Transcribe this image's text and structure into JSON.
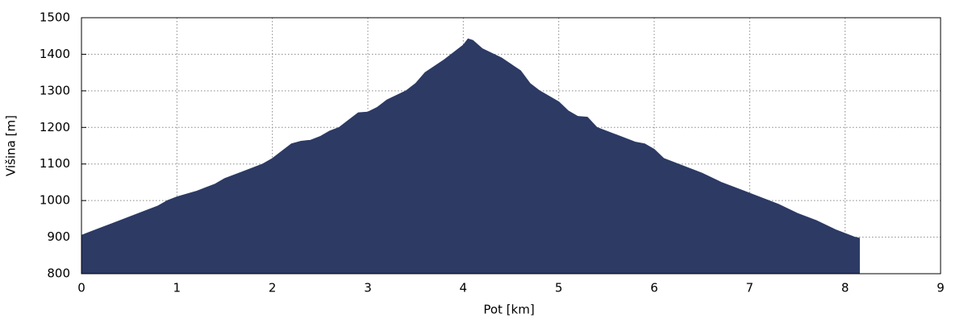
{
  "chart_data": {
    "type": "area",
    "x_label": "Pot [km]",
    "y_label": "Višina [m]",
    "x": [
      0,
      0.1,
      0.3,
      0.5,
      0.7,
      0.8,
      0.9,
      1.0,
      1.2,
      1.4,
      1.5,
      1.7,
      1.9,
      2.0,
      2.1,
      2.2,
      2.3,
      2.4,
      2.5,
      2.6,
      2.7,
      2.8,
      2.9,
      3.0,
      3.1,
      3.2,
      3.4,
      3.5,
      3.6,
      3.8,
      3.9,
      4.0,
      4.05,
      4.1,
      4.2,
      4.4,
      4.6,
      4.7,
      4.8,
      5.0,
      5.1,
      5.2,
      5.3,
      5.4,
      5.6,
      5.8,
      5.9,
      6.0,
      6.1,
      6.3,
      6.5,
      6.7,
      6.9,
      7.1,
      7.3,
      7.5,
      7.7,
      7.9,
      8.1,
      8.15
    ],
    "values": [
      905,
      915,
      935,
      955,
      975,
      985,
      1000,
      1010,
      1025,
      1045,
      1060,
      1080,
      1100,
      1115,
      1135,
      1155,
      1162,
      1165,
      1175,
      1190,
      1200,
      1220,
      1240,
      1242,
      1255,
      1275,
      1300,
      1320,
      1350,
      1385,
      1405,
      1425,
      1442,
      1438,
      1415,
      1390,
      1355,
      1320,
      1300,
      1270,
      1245,
      1230,
      1228,
      1200,
      1180,
      1160,
      1155,
      1140,
      1115,
      1095,
      1075,
      1050,
      1030,
      1010,
      990,
      965,
      945,
      920,
      900,
      897
    ],
    "color": "#2c3a64",
    "xlim": [
      0,
      9
    ],
    "xticks": [
      0,
      1,
      2,
      3,
      4,
      5,
      6,
      7,
      8,
      9
    ],
    "ylim": [
      800,
      1500
    ],
    "yticks": [
      800,
      900,
      1000,
      1100,
      1200,
      1300,
      1400,
      1500
    ],
    "grid": true
  }
}
